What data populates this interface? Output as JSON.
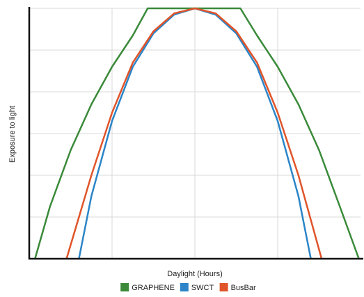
{
  "chart_data": {
    "type": "line",
    "title": "",
    "xlabel": "Daylight (Hours)",
    "ylabel": "Exposure to light",
    "xlim": [
      0,
      4
    ],
    "ylim": [
      0,
      6
    ],
    "grid": true,
    "legend_position": "bottom",
    "series": [
      {
        "name": "GRAPHENE",
        "color": "#3a8a3a",
        "points": [
          [
            0.07,
            0
          ],
          [
            0.25,
            1.25
          ],
          [
            0.5,
            2.6
          ],
          [
            0.75,
            3.7
          ],
          [
            1.0,
            4.6
          ],
          [
            1.25,
            5.35
          ],
          [
            1.43,
            6
          ],
          [
            2.0,
            6
          ],
          [
            2.5,
            6
          ],
          [
            2.55,
            6
          ],
          [
            2.75,
            5.35
          ],
          [
            3.0,
            4.6
          ],
          [
            3.25,
            3.7
          ],
          [
            3.5,
            2.6
          ],
          [
            3.75,
            1.25
          ],
          [
            3.98,
            0
          ]
        ]
      },
      {
        "name": "SWCT",
        "color": "#2b85c8",
        "points": [
          [
            0.6,
            0
          ],
          [
            0.75,
            1.5
          ],
          [
            1.0,
            3.3
          ],
          [
            1.25,
            4.6
          ],
          [
            1.5,
            5.4
          ],
          [
            1.75,
            5.85
          ],
          [
            2.0,
            6
          ],
          [
            2.25,
            5.85
          ],
          [
            2.5,
            5.4
          ],
          [
            2.75,
            4.6
          ],
          [
            3.0,
            3.3
          ],
          [
            3.25,
            1.5
          ],
          [
            3.4,
            0
          ]
        ]
      },
      {
        "name": "BusBar",
        "color": "#e0542a",
        "points": [
          [
            0.45,
            0
          ],
          [
            0.75,
            2.0
          ],
          [
            1.0,
            3.5
          ],
          [
            1.25,
            4.7
          ],
          [
            1.5,
            5.45
          ],
          [
            1.75,
            5.88
          ],
          [
            2.0,
            6
          ],
          [
            2.25,
            5.88
          ],
          [
            2.5,
            5.45
          ],
          [
            2.75,
            4.7
          ],
          [
            3.0,
            3.5
          ],
          [
            3.25,
            2.0
          ],
          [
            3.53,
            0
          ]
        ]
      }
    ]
  }
}
